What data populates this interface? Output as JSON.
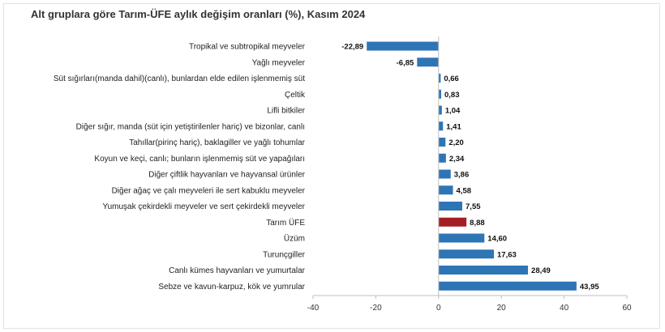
{
  "chart_data": {
    "type": "bar",
    "orientation": "horizontal",
    "title": "Alt gruplara göre Tarım-ÜFE aylık değişim oranları (%), Kasım 2024",
    "categories": [
      "Tropikal ve subtropikal meyveler",
      "Yağlı meyveler",
      "Süt sığırları(manda dahil)(canlı), bunlardan elde edilen işlenmemiş süt",
      "Çeltik",
      "Lifli bitkiler",
      "Diğer sığır, manda (süt için yetiştirilenler hariç) ve bizonlar, canlı",
      "Tahıllar(pirinç hariç), baklagiller ve yağlı tohumlar",
      "Koyun ve keçi, canlı; bunların işlenmemiş süt ve yapağıları",
      "Diğer çiftlik hayvanları ve hayvansal ürünler",
      "Diğer ağaç ve çalı meyveleri ile sert kabuklu meyveler",
      "Yumuşak çekirdekli meyveler ve sert çekirdekli meyveler",
      "Tarım ÜFE",
      "Üzüm",
      "Turunçgiller",
      "Canlı kümes hayvanları ve yumurtalar",
      "Sebze ve kavun-karpuz, kök ve yumrular"
    ],
    "values": [
      -22.89,
      -6.85,
      0.66,
      0.83,
      1.04,
      1.41,
      2.2,
      2.34,
      3.86,
      4.58,
      7.55,
      8.88,
      14.6,
      17.63,
      28.49,
      43.95
    ],
    "value_labels": [
      "-22,89",
      "-6,85",
      "0,66",
      "0,83",
      "1,04",
      "1,41",
      "2,20",
      "2,34",
      "3,86",
      "4,58",
      "7,55",
      "8,88",
      "14,60",
      "17,63",
      "28,49",
      "43,95"
    ],
    "highlight_category": "Tarım ÜFE",
    "xlim": [
      -40,
      60
    ],
    "xticks": [
      -40,
      -20,
      0,
      20,
      40,
      60
    ],
    "xtick_labels": [
      "-40",
      "-20",
      "0",
      "20",
      "40",
      "60"
    ],
    "colors": {
      "bar": "#2e75b6",
      "highlight": "#a31f24",
      "axis": "#bfbfbf"
    },
    "grid": false,
    "legend": "none"
  }
}
